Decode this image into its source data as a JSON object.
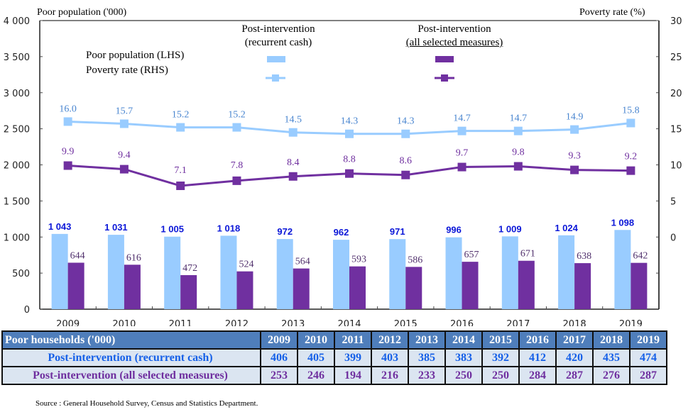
{
  "chart_data": {
    "type": "bar+line",
    "title": "",
    "categories": [
      "2009",
      "2010",
      "2011",
      "2012",
      "2013",
      "2014",
      "2015",
      "2016",
      "2017",
      "2018",
      "2019"
    ],
    "left_axis": {
      "label": "Poor population ('000)",
      "range": [
        0,
        4000
      ],
      "ticks": [
        0,
        500,
        1000,
        1500,
        2000,
        2500,
        3000,
        3500,
        4000
      ],
      "tick_labels": [
        "0",
        "500",
        "1 000",
        "1 500",
        "2 000",
        "2 500",
        "3 000",
        "3 500",
        "4 000"
      ]
    },
    "right_axis": {
      "label": "Poverty rate (%)",
      "range": [
        -10,
        30
      ],
      "ticks": [
        0,
        5,
        10,
        15,
        20,
        25,
        30
      ],
      "tick_labels": [
        "0",
        "5",
        "10",
        "15",
        "20",
        "25",
        "30"
      ]
    },
    "bar_series": [
      {
        "name": "Post-intervention (recurrent cash) - Poor population (LHS)",
        "color": "#99ccff",
        "values": [
          1043,
          1031,
          1005,
          1018,
          972,
          962,
          971,
          996,
          1009,
          1024,
          1098
        ],
        "labels": [
          "1 043",
          "1 031",
          "1 005",
          "1 018",
          "972",
          "962",
          "971",
          "996",
          "1 009",
          "1 024",
          "1 098"
        ]
      },
      {
        "name": "Post-intervention (all selected measures) - Poor population (LHS)",
        "color": "#7030a0",
        "values": [
          644,
          616,
          472,
          524,
          564,
          593,
          586,
          657,
          671,
          638,
          642
        ],
        "labels": [
          "644",
          "616",
          "472",
          "524",
          "564",
          "593",
          "586",
          "657",
          "671",
          "638",
          "642"
        ]
      }
    ],
    "line_series": [
      {
        "name": "Post-intervention (recurrent cash) - Poverty rate (RHS)",
        "color": "#99ccff",
        "label_color": "#4a86d0",
        "values": [
          16.0,
          15.7,
          15.2,
          15.2,
          14.5,
          14.3,
          14.3,
          14.7,
          14.7,
          14.9,
          15.8
        ],
        "labels": [
          "16.0",
          "15.7",
          "15.2",
          "15.2",
          "14.5",
          "14.3",
          "14.3",
          "14.7",
          "14.7",
          "14.9",
          "15.8"
        ]
      },
      {
        "name": "Post-intervention (all selected measures) - Poverty rate (RHS)",
        "color": "#7030a0",
        "label_color": "#6f2f9f",
        "values": [
          9.9,
          9.4,
          7.1,
          7.8,
          8.4,
          8.8,
          8.6,
          9.7,
          9.8,
          9.3,
          9.2
        ],
        "labels": [
          "9.9",
          "9.4",
          "7.1",
          "7.8",
          "8.4",
          "8.8",
          "8.6",
          "9.7",
          "9.8",
          "9.3",
          "9.2"
        ]
      }
    ],
    "legend": {
      "placement": "top-center",
      "column_headers": [
        "Post-intervention\n(recurrent cash)",
        "Post-intervention\n(all selected measures)"
      ],
      "row_labels": [
        "Poor population (LHS)",
        "Poverty rate (RHS)"
      ]
    },
    "grid": false
  },
  "axis_titles": {
    "left": "Poor population ('000)",
    "right": "Poverty rate (%)"
  },
  "legend": {
    "col1_line1": "Post-intervention",
    "col1_line2": "(recurrent cash)",
    "col2_line1": "Post-intervention",
    "col2_line2": "(all selected measures)",
    "row1": "Poor population (LHS)",
    "row2": "Poverty rate (RHS)"
  },
  "table": {
    "header_label": "Poor households ('000)",
    "years": [
      "2009",
      "2010",
      "2011",
      "2012",
      "2013",
      "2014",
      "2015",
      "2016",
      "2017",
      "2018",
      "2019"
    ],
    "rows": [
      {
        "label": "Post-intervention (recurrent cash)",
        "values": [
          "406",
          "405",
          "399",
          "403",
          "385",
          "383",
          "392",
          "412",
          "420",
          "435",
          "474"
        ]
      },
      {
        "label": "Post-intervention (all selected measures)",
        "values": [
          "253",
          "246",
          "194",
          "216",
          "233",
          "250",
          "250",
          "284",
          "287",
          "276",
          "287"
        ]
      }
    ]
  },
  "source": "Source : General Household Survey, Census and Statistics Department."
}
